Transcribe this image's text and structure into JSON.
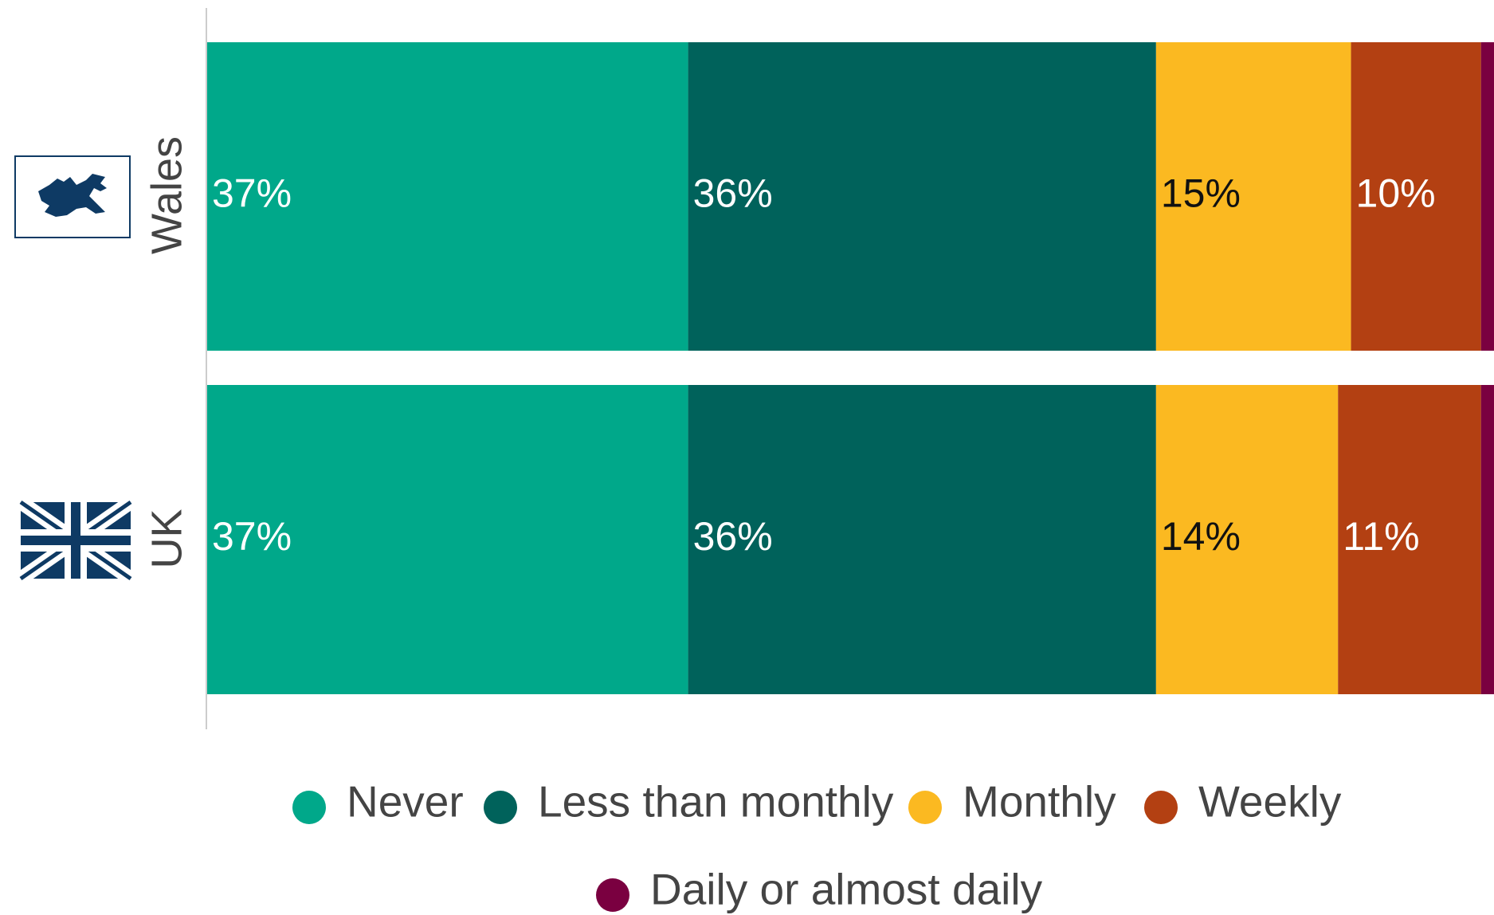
{
  "chart_data": {
    "type": "stacked-barh",
    "categories": [
      "Wales",
      "UK"
    ],
    "series": [
      {
        "name": "Never",
        "color": "#00a88a",
        "label_color": "#ffffff",
        "values": [
          37,
          37
        ],
        "value_labels": [
          "37%",
          "37%"
        ]
      },
      {
        "name": "Less than monthly",
        "color": "#00625b",
        "label_color": "#ffffff",
        "values": [
          36,
          36
        ],
        "value_labels": [
          "36%",
          "36%"
        ]
      },
      {
        "name": "Monthly",
        "color": "#fbb921",
        "label_color": "#111111",
        "values": [
          15,
          14
        ],
        "value_labels": [
          "15%",
          "14%"
        ]
      },
      {
        "name": "Weekly",
        "color": "#b34012",
        "label_color": "#ffffff",
        "values": [
          10,
          11
        ],
        "value_labels": [
          "10%",
          "11%"
        ]
      },
      {
        "name": "Daily or almost daily",
        "color": "#7a0040",
        "values": [
          1,
          1
        ]
      }
    ],
    "xlim": [
      0,
      99
    ]
  }
}
